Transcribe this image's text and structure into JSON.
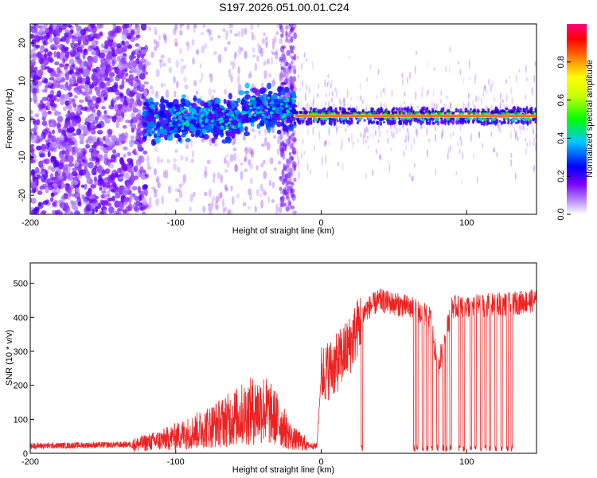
{
  "title": "S197.2026.051.00.01.C24",
  "chart_data": [
    {
      "type": "heatmap",
      "name": "spectrogram",
      "xlabel": "Height of straight line (km)",
      "ylabel": "Frequency (Hz)",
      "xlim": [
        -200,
        148
      ],
      "ylim": [
        -25,
        25
      ],
      "xticks": [
        -200,
        -100,
        0,
        100
      ],
      "yticks": [
        -20,
        -10,
        0,
        10,
        20
      ],
      "colorbar": {
        "label": "Normalized spectral amplitude",
        "range": [
          0.0,
          1.0
        ],
        "ticks": [
          0.0,
          0.2,
          0.4,
          0.6,
          0.8
        ],
        "colors": [
          "#ffffff",
          "#7a00ff",
          "#0000ff",
          "#00c8ff",
          "#00ff00",
          "#ffff00",
          "#ff8000",
          "#ff0000",
          "#ff0080"
        ]
      },
      "features": {
        "noise_region": [
          -200,
          -120
        ],
        "diffuse_cluster": [
          -122,
          -18
        ],
        "carrier_line": {
          "x": [
            -18,
            148
          ],
          "frequency": 0.8,
          "amplitude": 0.75
        }
      }
    },
    {
      "type": "line",
      "name": "snr",
      "xlabel": "Height of straight line (km)",
      "ylabel": "SNR (10 * v/v)",
      "xlim": [
        -200,
        148
      ],
      "ylim": [
        0,
        560
      ],
      "xticks": [
        -200,
        -100,
        0,
        100
      ],
      "yticks": [
        0,
        100,
        200,
        300,
        400,
        500
      ],
      "color": "#ee2222",
      "profile": [
        {
          "x": -200,
          "y": 18
        },
        {
          "x": -130,
          "y": 22
        },
        {
          "x": -110,
          "y": 35
        },
        {
          "x": -90,
          "y": 55
        },
        {
          "x": -70,
          "y": 80
        },
        {
          "x": -50,
          "y": 110
        },
        {
          "x": -40,
          "y": 120
        },
        {
          "x": -30,
          "y": 90
        },
        {
          "x": -20,
          "y": 40
        },
        {
          "x": -10,
          "y": 25
        },
        {
          "x": -3,
          "y": 20
        },
        {
          "x": 0,
          "y": 230
        },
        {
          "x": 10,
          "y": 260
        },
        {
          "x": 20,
          "y": 320
        },
        {
          "x": 30,
          "y": 420
        },
        {
          "x": 40,
          "y": 450
        },
        {
          "x": 60,
          "y": 430
        },
        {
          "x": 75,
          "y": 400
        },
        {
          "x": 80,
          "y": 250
        },
        {
          "x": 90,
          "y": 430
        },
        {
          "x": 110,
          "y": 435
        },
        {
          "x": 130,
          "y": 440
        },
        {
          "x": 148,
          "y": 450
        }
      ],
      "dropouts": [
        28,
        64,
        66,
        70,
        73,
        76,
        80,
        84,
        86,
        89,
        95,
        98,
        103,
        106,
        110,
        113,
        116,
        120,
        124,
        128,
        131
      ]
    }
  ]
}
